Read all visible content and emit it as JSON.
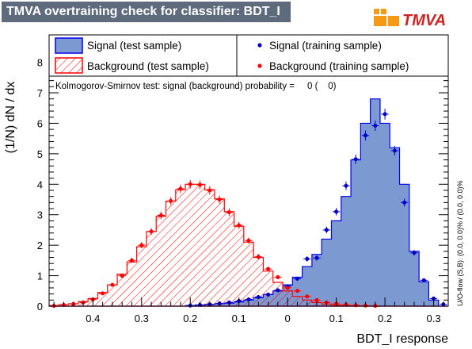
{
  "header": {
    "title": "TMVA overtraining check for classifier: BDT_I",
    "logo_text": "TMVA"
  },
  "colors": {
    "signal_fill": "#7d99d1",
    "signal_line": "#0000ee",
    "background_hatch": "#ff0000",
    "background_line": "#ff0000",
    "signal_marker": "#0000cc",
    "background_marker": "#ff0000",
    "title_bg": "#5d6b7d"
  },
  "chart_data": {
    "type": "bar",
    "title": "",
    "xlabel": "BDT_I response",
    "ylabel": "(1/N) dN / dx",
    "xlim": [
      -0.49,
      0.33
    ],
    "ylim": [
      0,
      8.9
    ],
    "x_ticks": [
      -0.4,
      -0.3,
      -0.2,
      -0.1,
      0,
      0.1,
      0.2,
      0.3
    ],
    "x_tick_labels": [
      "0.4",
      "0.3",
      "0.2",
      "0.1",
      "0",
      "0.1",
      "0.2",
      "0.3"
    ],
    "y_ticks": [
      0,
      1,
      2,
      3,
      4,
      5,
      6,
      7,
      8
    ],
    "y_tick_labels": [
      "0",
      "1",
      "2",
      "3",
      "4",
      "5",
      "6",
      "7",
      "8"
    ],
    "grid": false,
    "legend_placement": "top",
    "legend": {
      "signal_test": "Signal (test sample)",
      "signal_train": "Signal (training sample)",
      "background_test": "Background (test sample)",
      "background_train": "Background (training sample)"
    },
    "ks_text": "Kolmogorov-Smirnov test: signal (background) probability =     0 (    0)",
    "overflow_text": "U/O-flow (S,B): (0.0, 0.0)% / (0.0, 0.0)%",
    "bins": {
      "start": -0.49,
      "width": 0.02,
      "count": 41
    },
    "series": [
      {
        "name": "Signal (test sample)",
        "style": "filled-histogram",
        "values": [
          0,
          0,
          0,
          0,
          0,
          0,
          0,
          0,
          0,
          0,
          0,
          0,
          0,
          0,
          0.02,
          0.04,
          0.06,
          0.08,
          0.1,
          0.14,
          0.2,
          0.28,
          0.38,
          0.5,
          0.7,
          0.95,
          1.3,
          1.7,
          2.2,
          2.8,
          3.6,
          4.8,
          6.0,
          6.8,
          6.0,
          5.2,
          4.0,
          1.8,
          0.8,
          0.2,
          0
        ]
      },
      {
        "name": "Background (test sample)",
        "style": "hatched-histogram",
        "values": [
          0.02,
          0.05,
          0.08,
          0.15,
          0.25,
          0.45,
          0.7,
          1.05,
          1.45,
          1.95,
          2.45,
          2.95,
          3.45,
          3.82,
          4.0,
          4.0,
          3.82,
          3.52,
          3.1,
          2.62,
          2.1,
          1.6,
          1.15,
          0.78,
          0.5,
          0.32,
          0.2,
          0.12,
          0.07,
          0.04,
          0.02,
          0.01,
          0,
          0,
          0,
          0,
          0,
          0,
          0,
          0,
          0
        ]
      },
      {
        "name": "Signal (training sample)",
        "style": "points",
        "values": [
          0,
          0,
          0,
          0,
          0,
          0,
          0,
          0,
          0,
          0,
          0,
          0,
          0,
          0,
          0.02,
          0.04,
          0.06,
          0.09,
          0.12,
          0.17,
          0.22,
          0.3,
          0.38,
          0.52,
          0.65,
          0.9,
          1.55,
          1.58,
          2.5,
          3.1,
          3.95,
          4.82,
          5.6,
          5.92,
          6.3,
          5.1,
          3.4,
          1.75,
          0.85,
          0.25,
          0.06
        ]
      },
      {
        "name": "Background (training sample)",
        "style": "points",
        "values": [
          0.01,
          0.04,
          0.07,
          0.12,
          0.22,
          0.42,
          0.7,
          1.0,
          1.5,
          2.0,
          2.45,
          2.98,
          3.45,
          3.85,
          4.0,
          3.98,
          3.8,
          3.5,
          3.08,
          2.65,
          2.15,
          1.62,
          1.22,
          0.95,
          0.6,
          0.5,
          0.32,
          0.2,
          0.12,
          0.08,
          0.05,
          0.03,
          0.02,
          0.01,
          0,
          0,
          0,
          0,
          0,
          0,
          0
        ]
      }
    ]
  }
}
